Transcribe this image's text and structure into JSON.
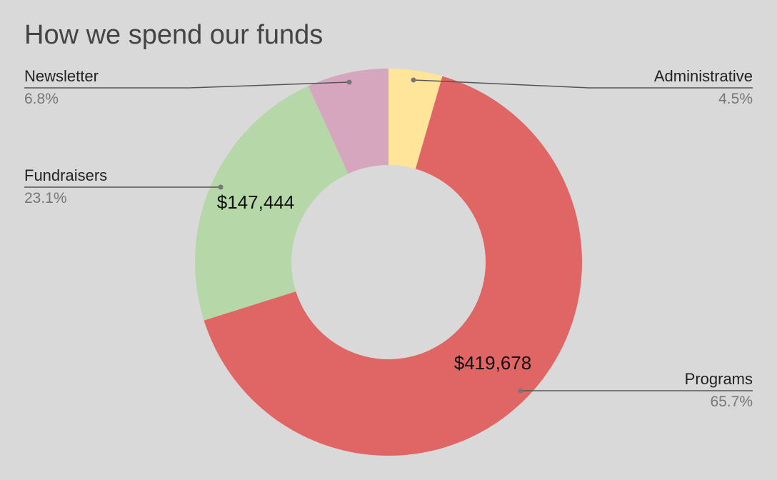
{
  "chart_data": {
    "type": "pie",
    "donut": true,
    "title": "How we spend our funds",
    "currency_prefix": "$",
    "series": [
      {
        "name": "Programs",
        "value": 419678,
        "percent_label": "65.7%",
        "value_label": "$419,678",
        "color": "#e06666"
      },
      {
        "name": "Fundraisers",
        "value": 147444,
        "percent_label": "23.1%",
        "value_label": "$147,444",
        "color": "#b6d7a8"
      },
      {
        "name": "Newsletter",
        "value": 43500,
        "percent_label": "6.8%",
        "value_label": "",
        "color": "#d5a6bd"
      },
      {
        "name": "Administrative",
        "value": 28700,
        "percent_label": "4.5%",
        "value_label": "",
        "color": "#ffe599"
      }
    ],
    "legend": "callout-labels"
  },
  "colors": {
    "background": "#d9d9d9",
    "leader_line": "#555555"
  }
}
